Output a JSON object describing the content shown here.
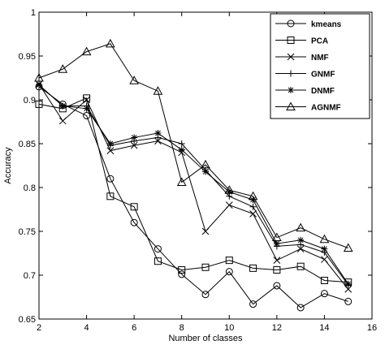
{
  "chart_data": {
    "type": "line",
    "xlabel": "Number of classes",
    "ylabel": "Accuracy",
    "xlim": [
      2,
      16
    ],
    "ylim": [
      0.65,
      1
    ],
    "xticks": [
      2,
      4,
      6,
      8,
      10,
      12,
      14,
      16
    ],
    "yticks": [
      0.65,
      0.7,
      0.75,
      0.8,
      0.85,
      0.9,
      0.95,
      1
    ],
    "ytick_labels": [
      "0.65",
      "0.7",
      "0.75",
      "0.8",
      "0.85",
      "0.9",
      "0.95",
      "1"
    ],
    "grid": false,
    "legend_position": "top-right",
    "x": [
      2,
      3,
      4,
      5,
      6,
      7,
      8,
      9,
      10,
      11,
      12,
      13,
      14,
      15
    ],
    "series": [
      {
        "name": "kmeans",
        "marker": "circle",
        "values": [
          0.915,
          0.895,
          0.882,
          0.81,
          0.76,
          0.73,
          0.701,
          0.678,
          0.704,
          0.667,
          0.688,
          0.663,
          0.679,
          0.67
        ]
      },
      {
        "name": "PCA",
        "marker": "square",
        "values": [
          0.895,
          0.89,
          0.902,
          0.79,
          0.778,
          0.716,
          0.706,
          0.709,
          0.717,
          0.708,
          0.706,
          0.71,
          0.694,
          0.692
        ]
      },
      {
        "name": "NMF",
        "marker": "x",
        "values": [
          0.918,
          0.876,
          0.9,
          0.842,
          0.848,
          0.853,
          0.84,
          0.75,
          0.78,
          0.77,
          0.717,
          0.73,
          0.718,
          0.684
        ]
      },
      {
        "name": "GNMF",
        "marker": "plus",
        "values": [
          0.917,
          0.893,
          0.893,
          0.848,
          0.853,
          0.857,
          0.85,
          0.82,
          0.79,
          0.778,
          0.733,
          0.735,
          0.726,
          0.689
        ]
      },
      {
        "name": "DNMF",
        "marker": "star",
        "values": [
          0.917,
          0.893,
          0.89,
          0.85,
          0.857,
          0.862,
          0.843,
          0.818,
          0.795,
          0.786,
          0.736,
          0.74,
          0.73,
          0.69
        ]
      },
      {
        "name": "AGNMF",
        "marker": "triangle",
        "values": [
          0.925,
          0.935,
          0.955,
          0.964,
          0.922,
          0.91,
          0.806,
          0.826,
          0.797,
          0.79,
          0.743,
          0.754,
          0.741,
          0.731
        ]
      }
    ]
  }
}
